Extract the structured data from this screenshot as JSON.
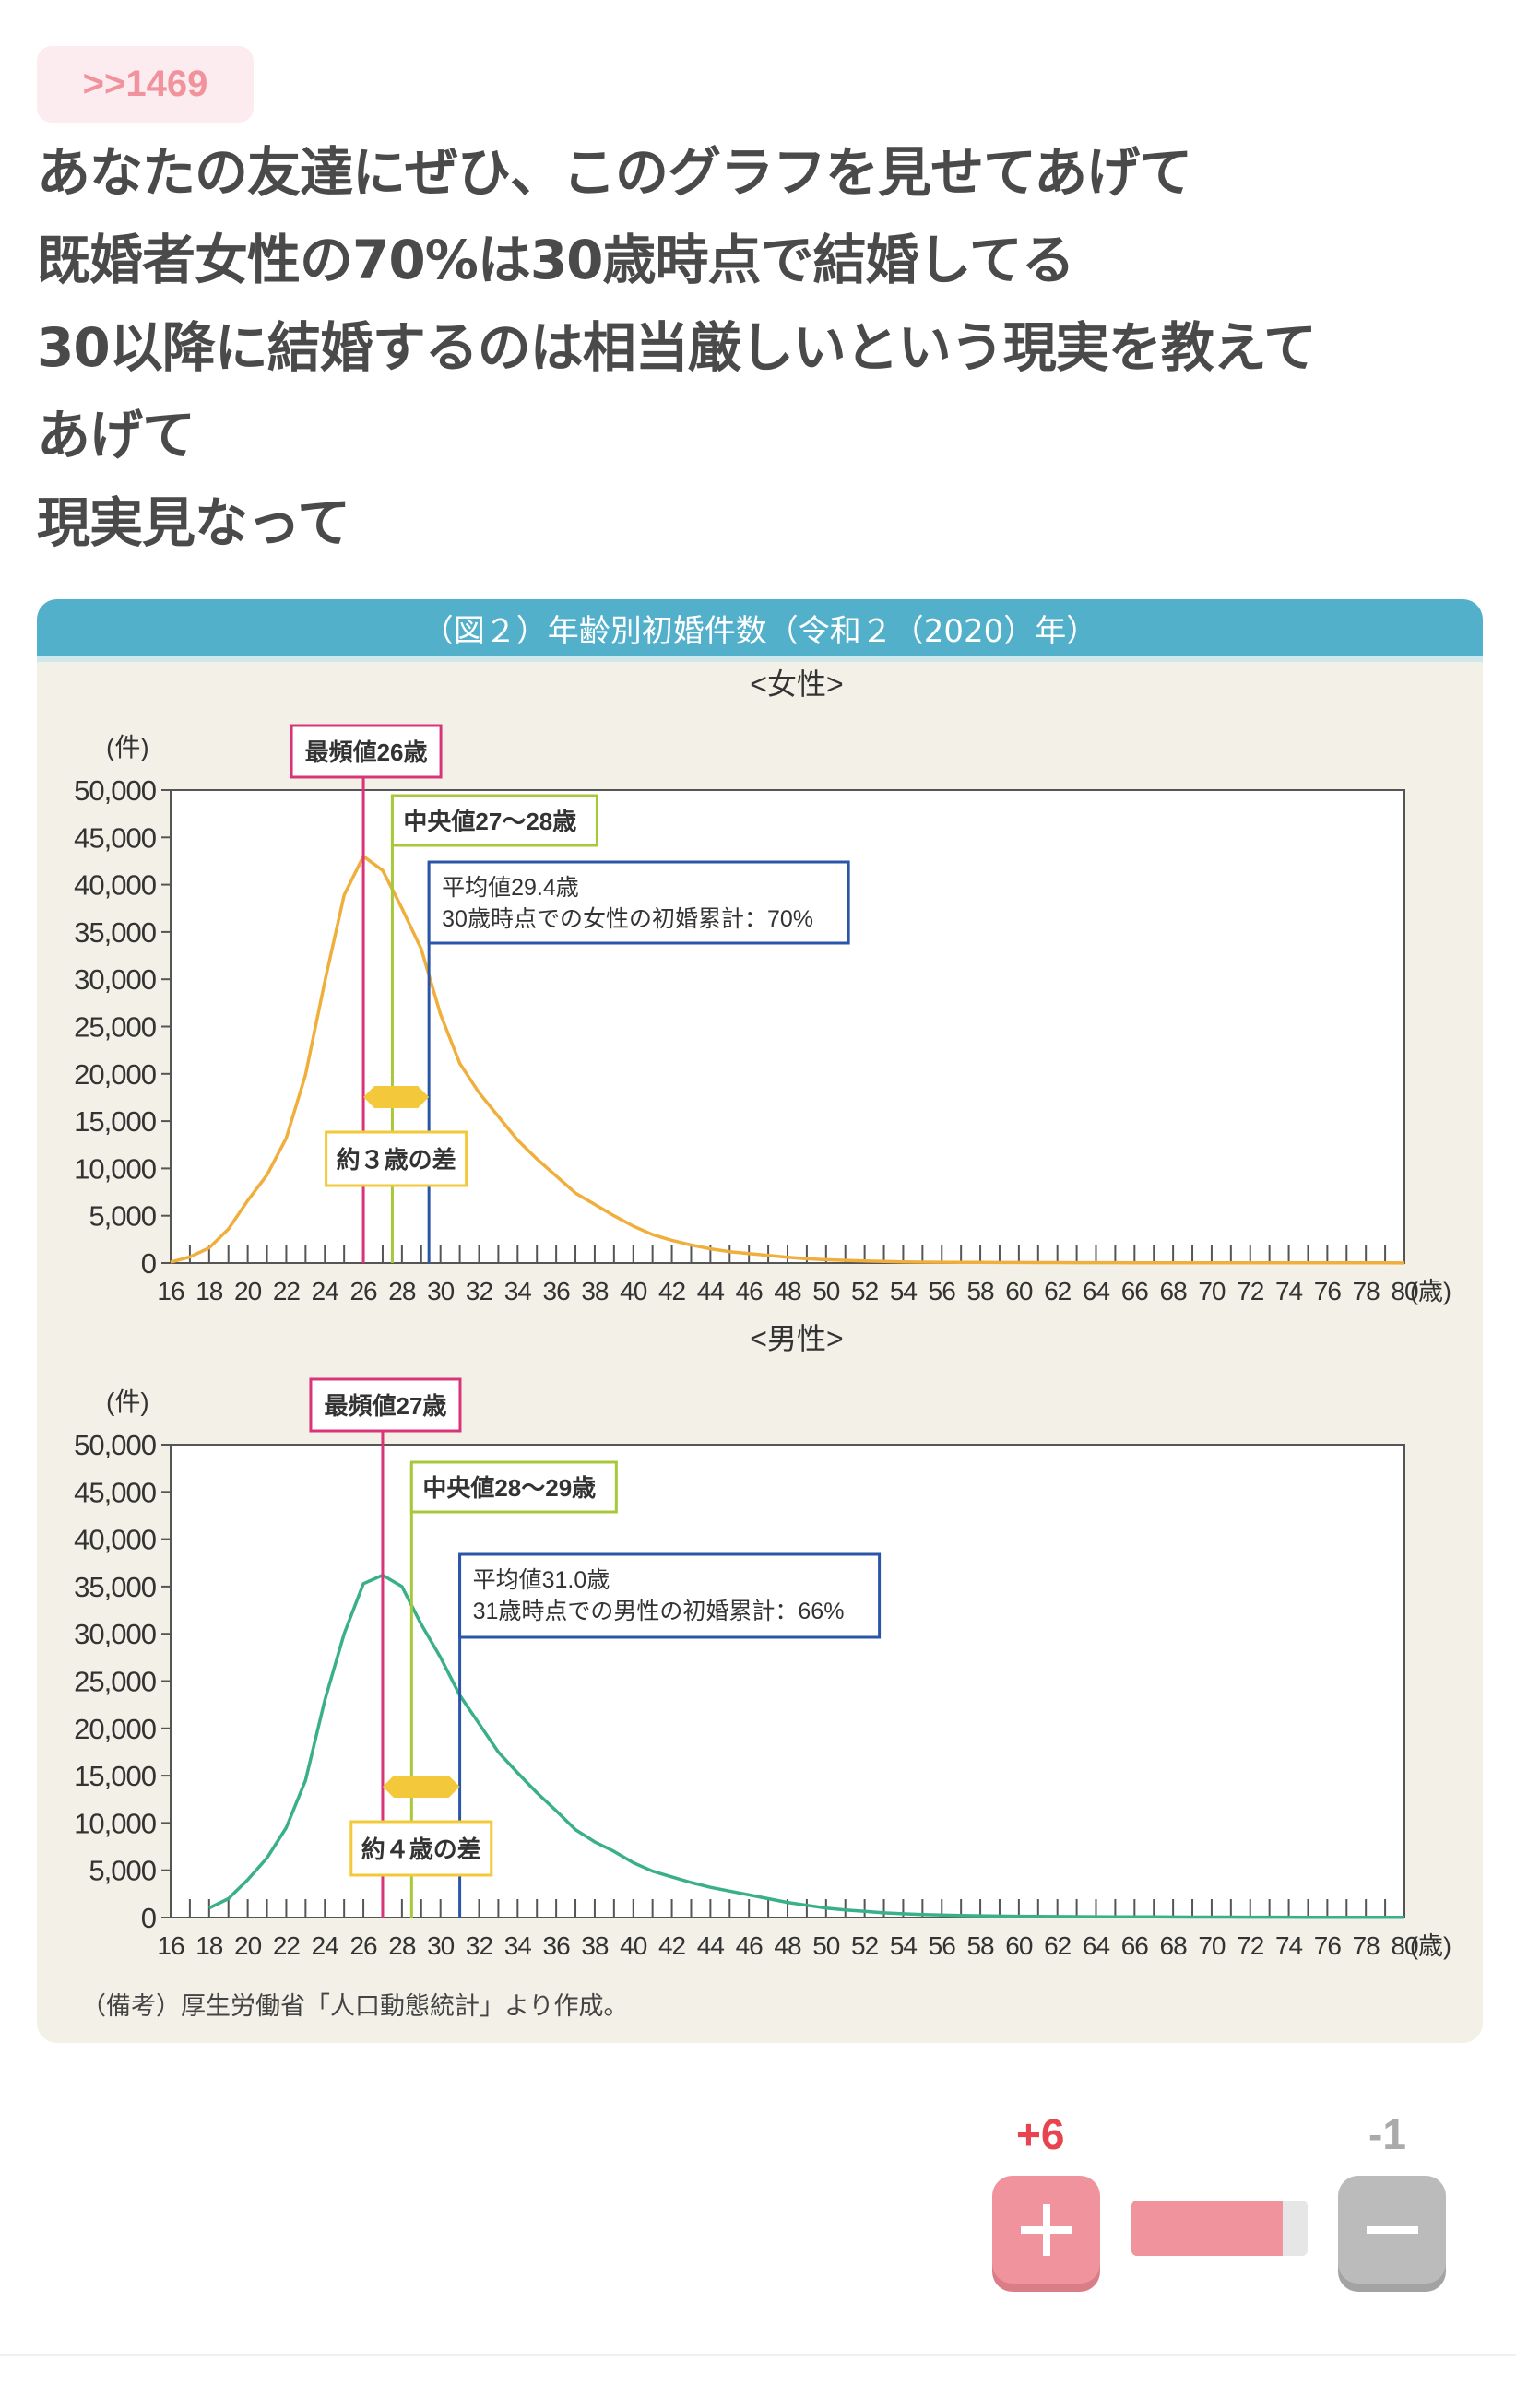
{
  "post": {
    "reply_anchor": ">>1469",
    "lines": [
      "あなたの友達にぜひ、このグラフを見せてあげて",
      "既婚者女性の70%は30歳時点で結婚してる",
      "30以降に結婚するのは相当厳しいという現実を教えて",
      "あげて",
      "現実見なって"
    ]
  },
  "figure": {
    "title": "（図２）年齢別初婚件数（令和２（2020）年）",
    "note": "（備考）厚生労働省「人口動態統計」より作成。",
    "header_color": "#52b0cb",
    "background_color": "#f3f0e8"
  },
  "chart_data": [
    {
      "type": "line",
      "title": "<女性>",
      "ylabel": "(件)",
      "xunit": "(歳)",
      "xlim": [
        16,
        80
      ],
      "ylim": [
        0,
        50000
      ],
      "grid": false,
      "color": "#f0ae3c",
      "yticks": [
        "0",
        "5,000",
        "10,000",
        "15,000",
        "20,000",
        "25,000",
        "30,000",
        "35,000",
        "40,000",
        "45,000",
        "50,000"
      ],
      "xticks": [
        "16",
        "18",
        "20",
        "22",
        "24",
        "26",
        "28",
        "30",
        "32",
        "34",
        "36",
        "38",
        "40",
        "42",
        "44",
        "46",
        "48",
        "50",
        "52",
        "54",
        "56",
        "58",
        "60",
        "62",
        "64",
        "66",
        "68",
        "70",
        "72",
        "74",
        "76",
        "78",
        "80"
      ],
      "x": [
        16,
        17,
        18,
        19,
        20,
        21,
        22,
        23,
        24,
        25,
        26,
        27,
        28,
        29,
        30,
        31,
        32,
        33,
        34,
        35,
        36,
        37,
        38,
        39,
        40,
        41,
        42,
        43,
        44,
        45,
        46,
        47,
        48,
        49,
        50,
        51,
        52,
        53,
        54,
        55,
        56,
        57,
        58,
        59,
        60,
        61,
        62,
        63,
        64,
        65,
        66,
        67,
        68,
        69,
        70,
        71,
        72,
        73,
        74,
        75,
        76,
        77,
        78,
        79,
        80
      ],
      "values": [
        100,
        640,
        1600,
        3600,
        6600,
        9300,
        13200,
        19900,
        29800,
        38900,
        43000,
        41500,
        37500,
        33200,
        26300,
        21100,
        18000,
        15500,
        13000,
        11000,
        9200,
        7400,
        6200,
        5000,
        3900,
        3000,
        2400,
        1900,
        1500,
        1200,
        1000,
        800,
        600,
        450,
        350,
        280,
        220,
        170,
        130,
        100,
        90,
        80,
        70,
        60,
        55,
        50,
        45,
        40,
        38,
        35,
        32,
        30,
        28,
        26,
        24,
        22,
        20,
        20,
        18,
        18,
        16,
        16,
        15,
        15,
        14
      ],
      "markers": {
        "mode": {
          "value": 26,
          "label": "最頻値26歳",
          "color": "#d9337a"
        },
        "median": {
          "value": 27.5,
          "label": "中央値27～28歳",
          "color": "#a8c83c"
        },
        "mean": {
          "value": 29.4,
          "label": "平均値29.4歳",
          "sublabel": "30歳時点での女性の初婚累計：70%",
          "color": "#2a56a8"
        },
        "gap": {
          "label": "約３歳の差",
          "color": "#f3c83a"
        }
      }
    },
    {
      "type": "line",
      "title": "<男性>",
      "ylabel": "(件)",
      "xunit": "(歳)",
      "xlim": [
        16,
        80
      ],
      "ylim": [
        0,
        50000
      ],
      "grid": false,
      "color": "#3ab08a",
      "yticks": [
        "0",
        "5,000",
        "10,000",
        "15,000",
        "20,000",
        "25,000",
        "30,000",
        "35,000",
        "40,000",
        "45,000",
        "50,000"
      ],
      "xticks": [
        "16",
        "18",
        "20",
        "22",
        "24",
        "26",
        "28",
        "30",
        "32",
        "34",
        "36",
        "38",
        "40",
        "42",
        "44",
        "46",
        "48",
        "50",
        "52",
        "54",
        "56",
        "58",
        "60",
        "62",
        "64",
        "66",
        "68",
        "70",
        "72",
        "74",
        "76",
        "78",
        "80"
      ],
      "x": [
        18,
        19,
        20,
        21,
        22,
        23,
        24,
        25,
        26,
        27,
        28,
        29,
        30,
        31,
        32,
        33,
        34,
        35,
        36,
        37,
        38,
        39,
        40,
        41,
        42,
        43,
        44,
        45,
        46,
        47,
        48,
        49,
        50,
        51,
        52,
        53,
        54,
        55,
        56,
        57,
        58,
        59,
        60,
        61,
        62,
        63,
        64,
        65,
        66,
        67,
        68,
        69,
        70,
        71,
        72,
        73,
        74,
        75,
        76,
        77,
        78,
        79,
        80
      ],
      "values": [
        1000,
        2000,
        4000,
        6300,
        9500,
        14500,
        23000,
        30000,
        35300,
        36200,
        35000,
        31000,
        27500,
        23500,
        20500,
        17500,
        15300,
        13200,
        11300,
        9300,
        8000,
        7000,
        5800,
        4900,
        4300,
        3700,
        3200,
        2800,
        2400,
        2000,
        1600,
        1300,
        1000,
        800,
        650,
        500,
        400,
        320,
        260,
        220,
        190,
        160,
        140,
        125,
        110,
        100,
        90,
        80,
        72,
        65,
        58,
        52,
        48,
        44,
        40,
        38,
        36,
        34,
        32,
        30,
        28,
        26,
        25
      ],
      "markers": {
        "mode": {
          "value": 27,
          "label": "最頻値27歳",
          "color": "#d9337a"
        },
        "median": {
          "value": 28.5,
          "label": "中央値28～29歳",
          "color": "#a8c83c"
        },
        "mean": {
          "value": 31.0,
          "label": "平均値31.0歳",
          "sublabel": "31歳時点での男性の初婚累計：66%",
          "color": "#2a56a8"
        },
        "gap": {
          "label": "約４歳の差",
          "color": "#f3c83a"
        }
      }
    }
  ],
  "votes": {
    "plus_count": "+6",
    "minus_count": "-1",
    "plus_color": "#e8444f",
    "minus_color": "#aaaaaa",
    "ratio_percent": 85.7,
    "plus_icon": "plus-icon",
    "minus_icon": "minus-icon"
  }
}
